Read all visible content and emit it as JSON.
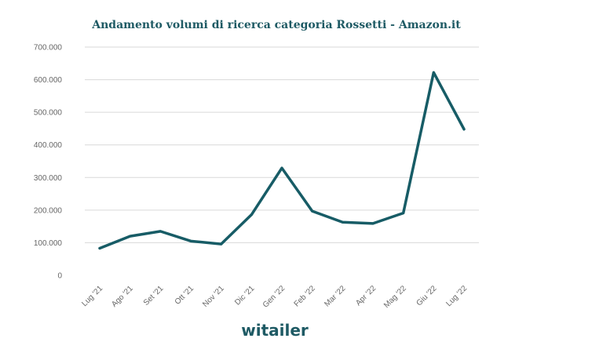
{
  "chart_data": {
    "type": "line",
    "title": "Andamento volumi di ricerca categoria Rossetti - Amazon.it",
    "xlabel": "",
    "ylabel": "",
    "categories": [
      "Lug '21",
      "Ago '21",
      "Set '21",
      "Ott '21",
      "Nov '21",
      "Dic '21",
      "Gen '22",
      "Feb '22",
      "Mar '22",
      "Apr '22",
      "Mag '22",
      "Giu '22",
      "Lug '22"
    ],
    "series": [
      {
        "values": [
          83000,
          120000,
          135000,
          105000,
          96000,
          186000,
          329000,
          197000,
          163000,
          159000,
          191000,
          622000,
          448000
        ]
      }
    ],
    "ylim": [
      0,
      700000
    ],
    "yticks": [
      0,
      100000,
      200000,
      300000,
      400000,
      500000,
      600000,
      700000
    ],
    "ytick_labels": [
      "0",
      "100.000",
      "200.000",
      "300.000",
      "400.000",
      "500.000",
      "600.000",
      "700.000"
    ],
    "grid": true,
    "legend": "none",
    "line_color": "#175c66"
  },
  "logo": {
    "text": "witailer",
    "color": "#1e5a64"
  }
}
